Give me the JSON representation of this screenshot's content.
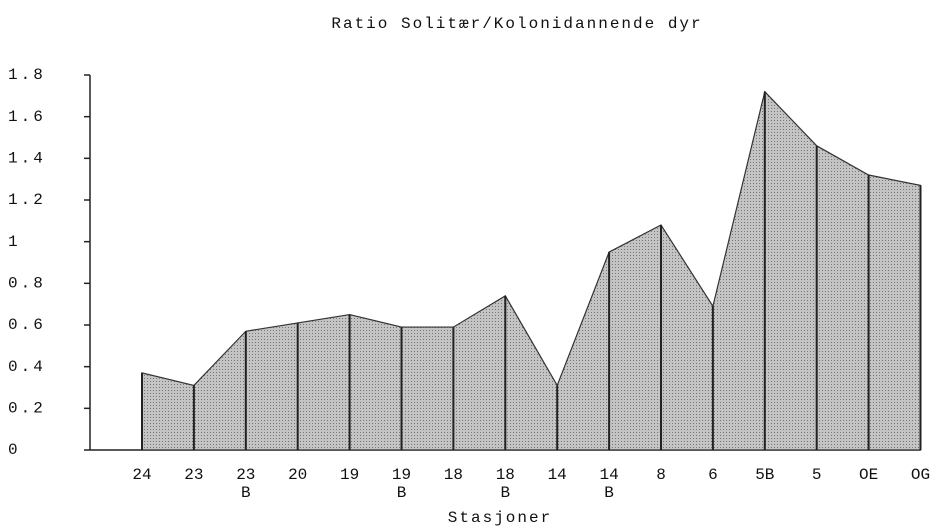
{
  "chart_data": {
    "type": "area",
    "title": "Ratio Solitær/Kolonidannende dyr",
    "x_label": "Stasjoner",
    "categories": [
      "24",
      "23",
      "23\nB",
      "20",
      "19",
      "19\nB",
      "18",
      "18\nB",
      "14",
      "14\nB",
      "8",
      "6",
      "5B",
      "5",
      "OE",
      "OG"
    ],
    "values": [
      0.37,
      0.31,
      0.57,
      0.61,
      0.65,
      0.59,
      0.59,
      0.74,
      0.31,
      0.95,
      1.08,
      0.69,
      1.72,
      1.46,
      1.32,
      1.27
    ],
    "color": "#b5b5b5",
    "ylim": [
      0,
      1.8
    ],
    "yticks": [
      0,
      0.2,
      0.4,
      0.6,
      0.8,
      1,
      1.2,
      1.4,
      1.6,
      1.8
    ]
  }
}
